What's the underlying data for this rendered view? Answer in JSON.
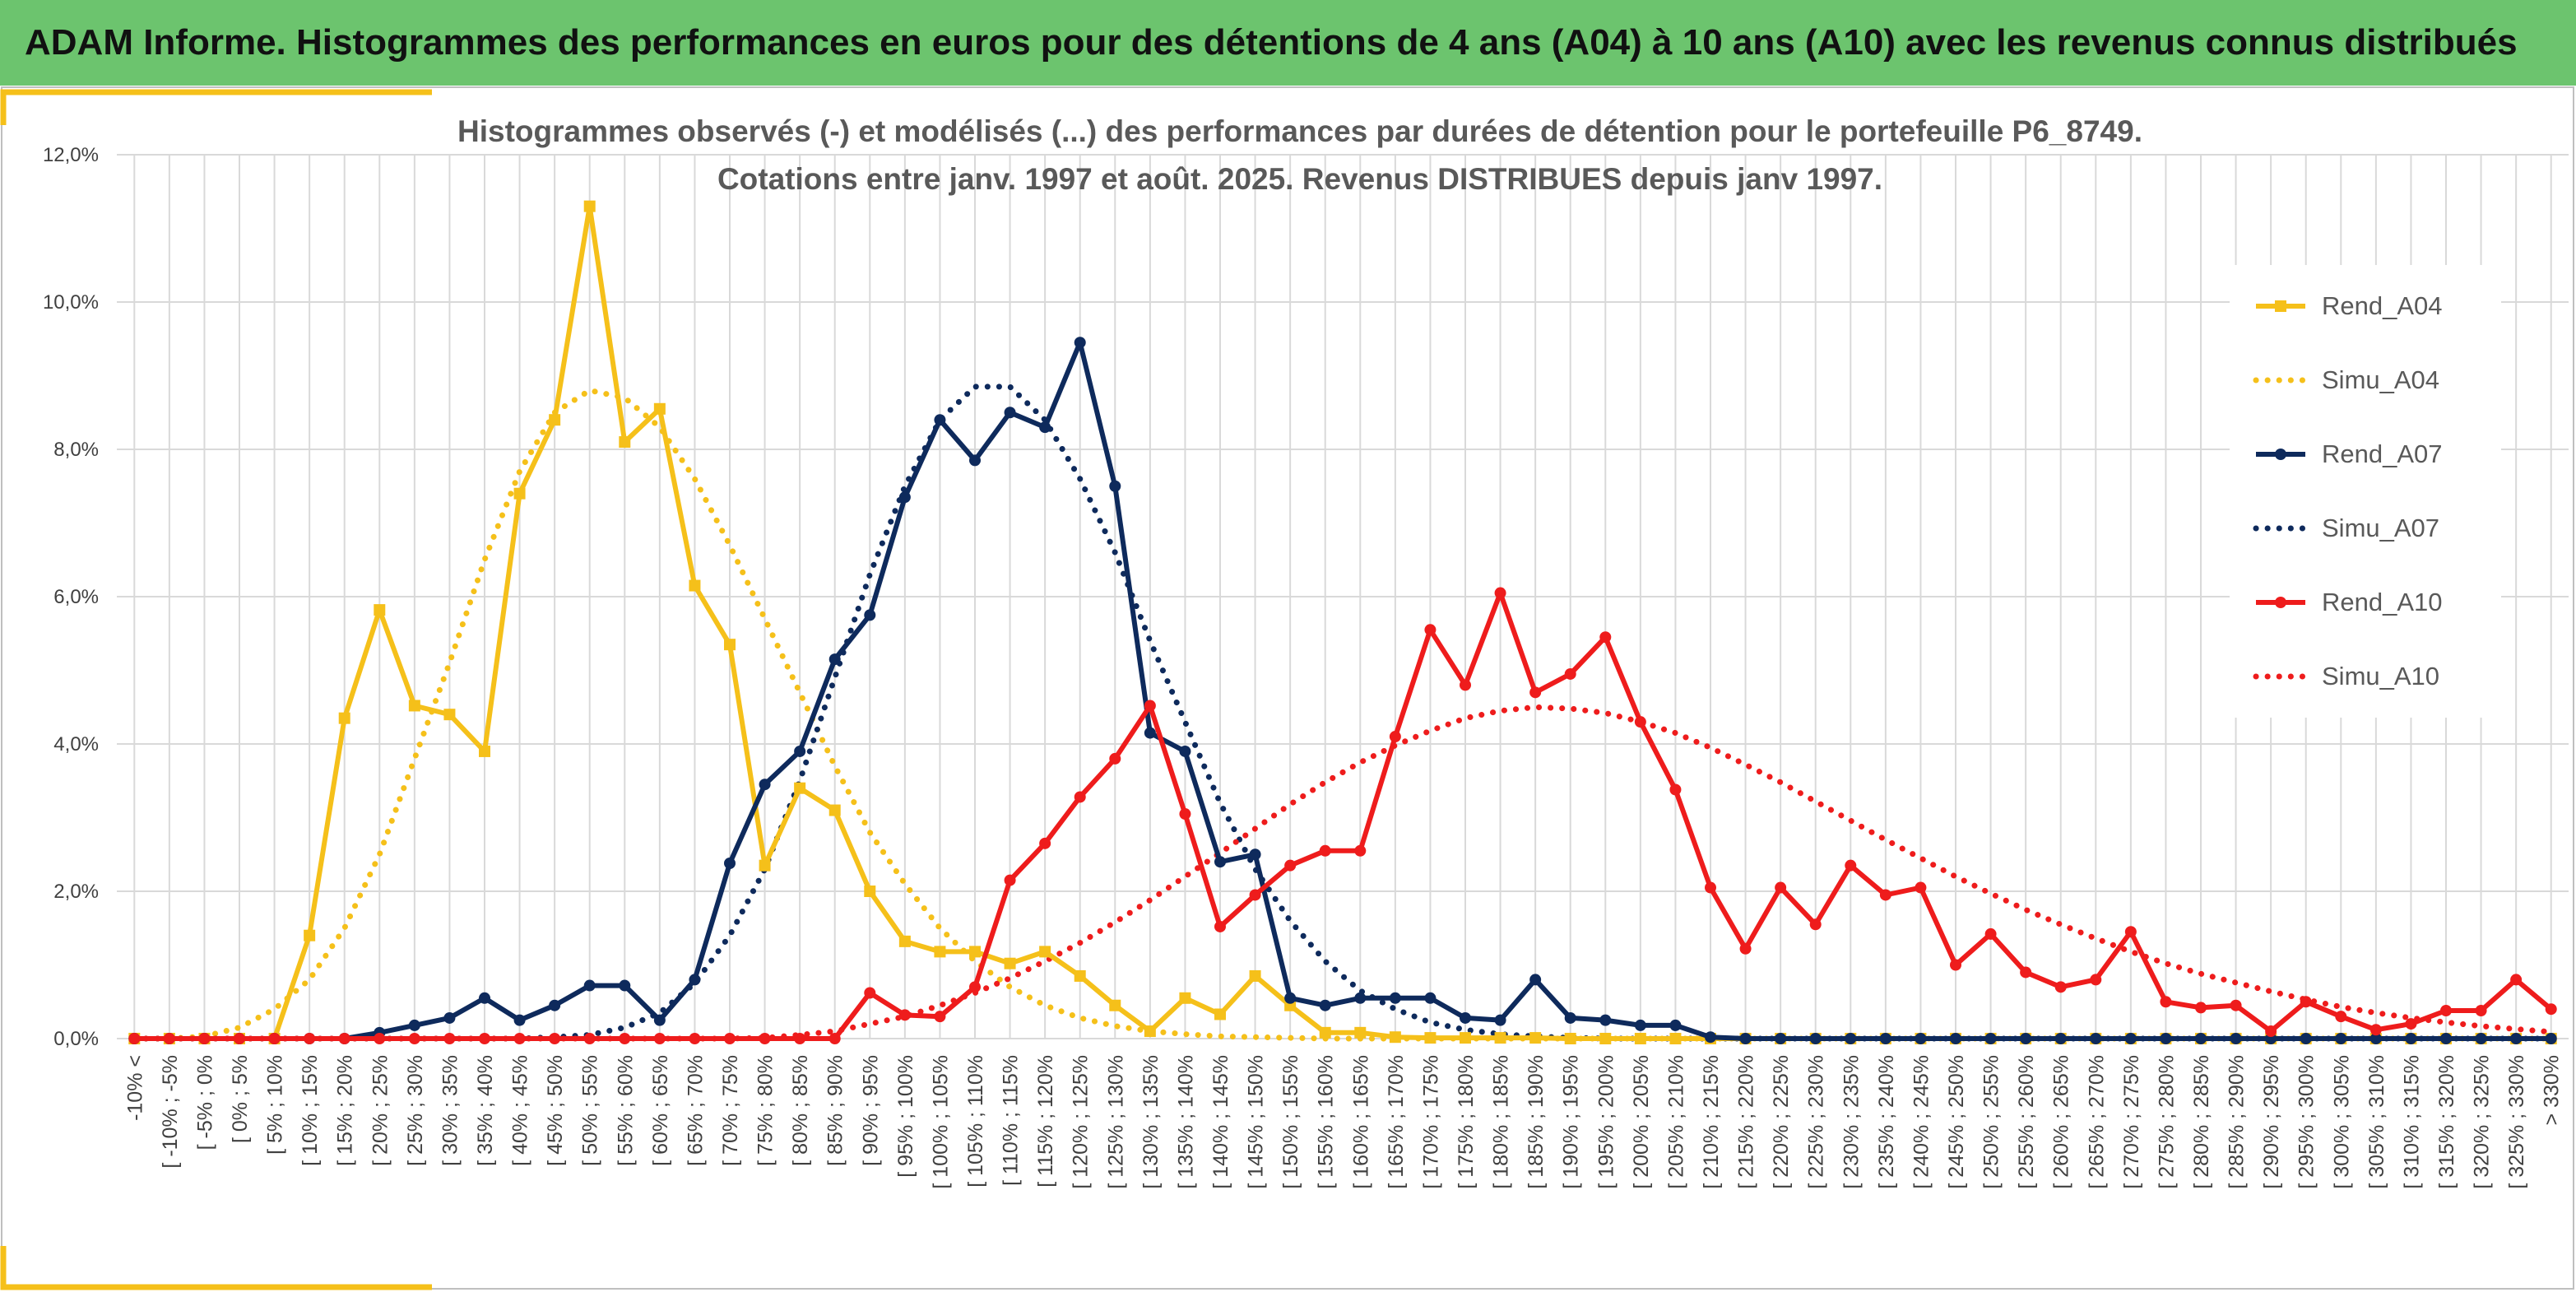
{
  "header": {
    "title": "ADAM Informe. Histogrammes des performances en euros pour des détentions de 4 ans (A04) à 10 ans (A10) avec les revenus connus distribués"
  },
  "colors": {
    "banner": "#6cc46e",
    "accent_frame": "#f5c01a",
    "A04": "#f5c01a",
    "A07": "#0e2a5c",
    "A10": "#ee1c1c",
    "grid": "#d9d9d9"
  },
  "chart_data": {
    "type": "line",
    "title_line1": "Histogrammes observés (-) et modélisés (...) des performances par durées de détention pour le portefeuille P6_8749.",
    "title_line2": "Cotations entre janv. 1997 et août. 2025. Revenus DISTRIBUES depuis janv 1997.",
    "ylim": [
      0,
      12
    ],
    "yticks": [
      "0,0%",
      "2,0%",
      "4,0%",
      "6,0%",
      "8,0%",
      "10,0%",
      "12,0%"
    ],
    "grid": "on",
    "legend_position": "right",
    "categories": [
      "-10% <",
      "[ -10% ; -5%",
      "[ -5% ; 0%",
      "[ 0% ; 5%",
      "[ 5% ; 10%",
      "[ 10% ; 15%",
      "[ 15% ; 20%",
      "[ 20% ; 25%",
      "[ 25% ; 30%",
      "[ 30% ; 35%",
      "[ 35% ; 40%",
      "[ 40% ; 45%",
      "[ 45% ; 50%",
      "[ 50% ; 55%",
      "[ 55% ; 60%",
      "[ 60% ; 65%",
      "[ 65% ; 70%",
      "[ 70% ; 75%",
      "[ 75% ; 80%",
      "[ 80% ; 85%",
      "[ 85% ; 90%",
      "[ 90% ; 95%",
      "[ 95% ; 100%",
      "[ 100% ; 105%",
      "[ 105% ; 110%",
      "[ 110% ; 115%",
      "[ 115% ; 120%",
      "[ 120% ; 125%",
      "[ 125% ; 130%",
      "[ 130% ; 135%",
      "[ 135% ; 140%",
      "[ 140% ; 145%",
      "[ 145% ; 150%",
      "[ 150% ; 155%",
      "[ 155% ; 160%",
      "[ 160% ; 165%",
      "[ 165% ; 170%",
      "[ 170% ; 175%",
      "[ 175% ; 180%",
      "[ 180% ; 185%",
      "[ 185% ; 190%",
      "[ 190% ; 195%",
      "[ 195% ; 200%",
      "[ 200% ; 205%",
      "[ 205% ; 210%",
      "[ 210% ; 215%",
      "[ 215% ; 220%",
      "[ 220% ; 225%",
      "[ 225% ; 230%",
      "[ 230% ; 235%",
      "[ 235% ; 240%",
      "[ 240% ; 245%",
      "[ 245% ; 250%",
      "[ 250% ; 255%",
      "[ 255% ; 260%",
      "[ 260% ; 265%",
      "[ 265% ; 270%",
      "[ 270% ; 275%",
      "[ 275% ; 280%",
      "[ 280% ; 285%",
      "[ 285% ; 290%",
      "[ 290% ; 295%",
      "[ 295% ; 300%",
      "[ 300% ; 305%",
      "[ 305% ; 310%",
      "[ 310% ; 315%",
      "[ 315% ; 320%",
      "[ 320% ; 325%",
      "[ 325% ; 330%",
      "> 330%"
    ],
    "series": [
      {
        "name": "Rend_A04",
        "style": "solid",
        "marker": "square",
        "color": "#f5c01a",
        "values": [
          0,
          0,
          0,
          0,
          0,
          1.4,
          4.35,
          5.82,
          4.52,
          4.4,
          3.9,
          7.4,
          8.4,
          11.3,
          8.1,
          8.55,
          6.15,
          5.35,
          2.35,
          3.4,
          3.1,
          2.0,
          1.32,
          1.18,
          1.18,
          1.02,
          1.18,
          0.85,
          0.45,
          0.1,
          0.55,
          0.33,
          0.85,
          0.45,
          0.08,
          0.08,
          0.02,
          0.01,
          0.01,
          0.01,
          0.01,
          0,
          0,
          0,
          0,
          0,
          0,
          0,
          0,
          0,
          0,
          0,
          0,
          0,
          0,
          0,
          0,
          0,
          0,
          0,
          0,
          0,
          0,
          0,
          0,
          0,
          0,
          0,
          0,
          0
        ]
      },
      {
        "name": "Simu_A04",
        "style": "dotted",
        "color": "#f5c01a",
        "values": [
          0,
          0,
          0.03,
          0.15,
          0.4,
          0.8,
          1.5,
          2.5,
          3.8,
          5.1,
          6.5,
          7.7,
          8.5,
          8.8,
          8.7,
          8.3,
          7.6,
          6.7,
          5.7,
          4.7,
          3.7,
          2.8,
          2.1,
          1.5,
          1.05,
          0.7,
          0.45,
          0.28,
          0.17,
          0.1,
          0.06,
          0.03,
          0.02,
          0.01,
          0,
          0,
          0,
          0,
          0,
          0,
          0,
          0,
          0,
          0,
          0,
          0,
          0,
          0,
          0,
          0,
          0,
          0,
          0,
          0,
          0,
          0,
          0,
          0,
          0,
          0,
          0,
          0,
          0,
          0,
          0,
          0,
          0,
          0,
          0,
          0
        ]
      },
      {
        "name": "Rend_A07",
        "style": "solid",
        "marker": "circle",
        "color": "#0e2a5c",
        "values": [
          0,
          0,
          0,
          0,
          0,
          0,
          0,
          0.08,
          0.18,
          0.28,
          0.55,
          0.25,
          0.45,
          0.72,
          0.72,
          0.25,
          0.8,
          2.38,
          3.45,
          3.9,
          5.15,
          5.75,
          7.35,
          8.4,
          7.85,
          8.5,
          8.3,
          9.45,
          7.5,
          4.15,
          3.9,
          2.4,
          2.5,
          0.55,
          0.45,
          0.55,
          0.55,
          0.55,
          0.28,
          0.25,
          0.8,
          0.28,
          0.25,
          0.18,
          0.18,
          0.02,
          0,
          0,
          0,
          0,
          0,
          0,
          0,
          0,
          0,
          0,
          0,
          0,
          0,
          0,
          0,
          0,
          0,
          0,
          0,
          0,
          0,
          0,
          0,
          0
        ]
      },
      {
        "name": "Simu_A07",
        "style": "dotted",
        "color": "#0e2a5c",
        "values": [
          0,
          0,
          0,
          0,
          0,
          0,
          0,
          0,
          0,
          0,
          0,
          0,
          0.02,
          0.05,
          0.15,
          0.35,
          0.75,
          1.4,
          2.3,
          3.5,
          4.9,
          6.3,
          7.5,
          8.4,
          8.85,
          8.85,
          8.4,
          7.6,
          6.6,
          5.4,
          4.3,
          3.2,
          2.3,
          1.6,
          1.05,
          0.65,
          0.4,
          0.22,
          0.12,
          0.06,
          0.03,
          0.01,
          0,
          0,
          0,
          0,
          0,
          0,
          0,
          0,
          0,
          0,
          0,
          0,
          0,
          0,
          0,
          0,
          0,
          0,
          0,
          0,
          0,
          0,
          0,
          0,
          0,
          0,
          0,
          0
        ]
      },
      {
        "name": "Rend_A10",
        "style": "solid",
        "marker": "circle",
        "color": "#ee1c1c",
        "values": [
          0,
          0,
          0,
          0,
          0,
          0,
          0,
          0,
          0,
          0,
          0,
          0,
          0,
          0,
          0,
          0,
          0,
          0,
          0,
          0,
          0,
          0.62,
          0.32,
          0.3,
          0.7,
          2.15,
          2.65,
          3.28,
          3.8,
          4.52,
          3.05,
          1.52,
          1.95,
          2.35,
          2.55,
          2.55,
          4.1,
          5.55,
          4.8,
          6.05,
          4.7,
          4.95,
          5.45,
          4.3,
          3.38,
          2.05,
          1.22,
          2.05,
          1.55,
          2.35,
          1.95,
          2.05,
          1.0,
          1.42,
          0.9,
          0.7,
          0.8,
          1.45,
          0.5,
          0.42,
          0.45,
          0.1,
          0.5,
          0.3,
          0.12,
          0.2,
          0.38,
          0.38,
          0.8,
          0.4
        ]
      },
      {
        "name": "Simu_A10",
        "style": "dotted",
        "color": "#ee1c1c",
        "values": [
          0,
          0,
          0,
          0,
          0,
          0,
          0,
          0,
          0,
          0,
          0,
          0,
          0,
          0,
          0,
          0,
          0,
          0,
          0.01,
          0.05,
          0.1,
          0.2,
          0.3,
          0.45,
          0.62,
          0.82,
          1.05,
          1.3,
          1.58,
          1.88,
          2.2,
          2.52,
          2.85,
          3.18,
          3.48,
          3.75,
          3.98,
          4.18,
          4.35,
          4.45,
          4.5,
          4.48,
          4.42,
          4.3,
          4.15,
          3.95,
          3.72,
          3.48,
          3.22,
          2.96,
          2.7,
          2.45,
          2.2,
          1.97,
          1.75,
          1.55,
          1.36,
          1.18,
          1.02,
          0.88,
          0.76,
          0.64,
          0.53,
          0.43,
          0.35,
          0.28,
          0.22,
          0.17,
          0.13,
          0.09
        ]
      }
    ]
  }
}
